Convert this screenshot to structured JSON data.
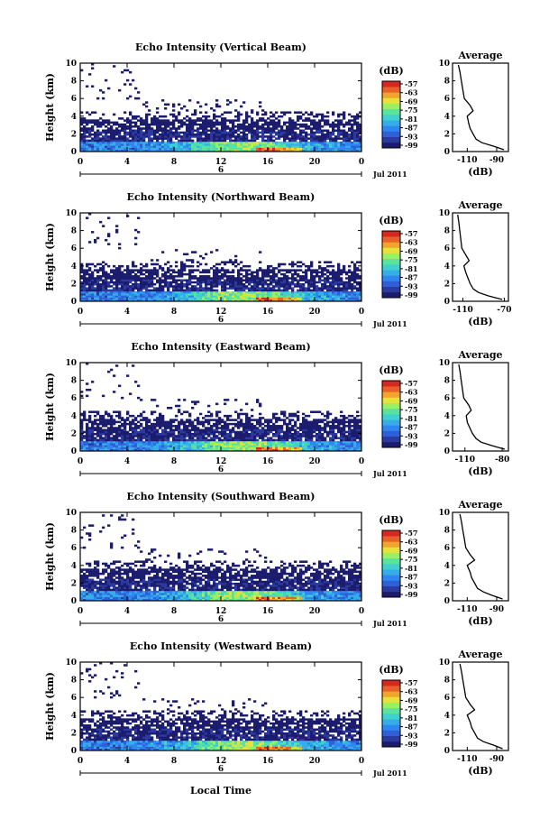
{
  "figure": {
    "xlabel": "Local Time",
    "date_label": "Jul 2011",
    "day_marker": "6"
  },
  "colorbar": {
    "unit": "(dB)",
    "ticks": [
      "-57",
      "-63",
      "-69",
      "-75",
      "-81",
      "-87",
      "-93",
      "-99"
    ],
    "colors": [
      "#1c1c6e",
      "#2a3a9e",
      "#2f5fd8",
      "#2e86f0",
      "#35aee8",
      "#3fd0d0",
      "#5ae39a",
      "#9bef62",
      "#e6e23a",
      "#f0a62d",
      "#e8602a",
      "#d42820"
    ]
  },
  "chart_data": [
    {
      "type": "heatmap",
      "title": "Echo Intensity (Vertical Beam)",
      "ylabel": "Height (km)",
      "x_ticks": [
        "0",
        "4",
        "8",
        "12",
        "16",
        "20",
        "0"
      ],
      "xlim": [
        0,
        24
      ],
      "ylim": [
        0,
        10
      ],
      "y_ticks": [
        "0",
        "2",
        "4",
        "6",
        "8",
        "10"
      ],
      "profile": {
        "title": "Average",
        "xlabel": "(dB)",
        "xticks": [
          "-110",
          "-90"
        ],
        "xlim": [
          -120,
          -82
        ],
        "height": [
          0.2,
          0.6,
          1.0,
          1.4,
          2.0,
          2.6,
          3.2,
          4.0,
          4.6,
          5.2,
          6.0,
          7.0,
          8.0,
          9.0,
          9.8
        ],
        "values": [
          -85,
          -92,
          -100,
          -104,
          -106,
          -108,
          -109,
          -110,
          -106,
          -108,
          -112,
          -113,
          -114,
          -115,
          -116
        ]
      }
    },
    {
      "type": "heatmap",
      "title": "Echo Intensity (Northward Beam)",
      "ylabel": "Height (km)",
      "x_ticks": [
        "0",
        "4",
        "8",
        "12",
        "16",
        "20",
        "0"
      ],
      "xlim": [
        0,
        24
      ],
      "ylim": [
        0,
        10
      ],
      "y_ticks": [
        "0",
        "2",
        "4",
        "6",
        "8",
        "10"
      ],
      "profile": {
        "title": "Average",
        "xlabel": "(dB)",
        "xticks": [
          "-110",
          "-70"
        ],
        "xlim": [
          -120,
          -66
        ],
        "height": [
          0.2,
          0.6,
          1.0,
          1.4,
          2.0,
          2.6,
          3.2,
          4.0,
          4.6,
          5.2,
          6.0,
          7.0,
          8.0,
          9.0,
          9.8
        ],
        "values": [
          -72,
          -85,
          -95,
          -100,
          -103,
          -105,
          -107,
          -109,
          -104,
          -107,
          -111,
          -112,
          -113,
          -114,
          -115
        ]
      }
    },
    {
      "type": "heatmap",
      "title": "Echo Intensity (Eastward Beam)",
      "ylabel": "Height (km)",
      "x_ticks": [
        "0",
        "4",
        "8",
        "12",
        "16",
        "20",
        "0"
      ],
      "xlim": [
        0,
        24
      ],
      "ylim": [
        0,
        10
      ],
      "y_ticks": [
        "0",
        "2",
        "4",
        "6",
        "8",
        "10"
      ],
      "profile": {
        "title": "Average",
        "xlabel": "(dB)",
        "xticks": [
          "-110",
          "-80"
        ],
        "xlim": [
          -120,
          -75
        ],
        "height": [
          0.2,
          0.6,
          1.0,
          1.4,
          2.0,
          2.6,
          3.2,
          4.0,
          4.6,
          5.2,
          6.0,
          7.0,
          8.0,
          9.0,
          9.8
        ],
        "values": [
          -78,
          -88,
          -97,
          -101,
          -104,
          -106,
          -108,
          -109,
          -105,
          -107,
          -111,
          -112,
          -113,
          -114,
          -115
        ]
      }
    },
    {
      "type": "heatmap",
      "title": "Echo Intensity (Southward Beam)",
      "ylabel": "Height (km)",
      "x_ticks": [
        "0",
        "4",
        "8",
        "12",
        "16",
        "20",
        "0"
      ],
      "xlim": [
        0,
        24
      ],
      "ylim": [
        0,
        10
      ],
      "y_ticks": [
        "0",
        "2",
        "4",
        "6",
        "8",
        "10"
      ],
      "profile": {
        "title": "Average",
        "xlabel": "(dB)",
        "xticks": [
          "-110",
          "-90"
        ],
        "xlim": [
          -120,
          -82
        ],
        "height": [
          0.2,
          0.6,
          1.0,
          1.4,
          2.0,
          2.6,
          3.2,
          4.0,
          4.6,
          5.2,
          6.0,
          7.0,
          8.0,
          9.0,
          9.8
        ],
        "values": [
          -86,
          -93,
          -99,
          -103,
          -105,
          -107,
          -108,
          -110,
          -105,
          -108,
          -111,
          -112,
          -113,
          -114,
          -115
        ]
      }
    },
    {
      "type": "heatmap",
      "title": "Echo Intensity (Westward Beam)",
      "ylabel": "Height (km)",
      "x_ticks": [
        "0",
        "4",
        "8",
        "12",
        "16",
        "20",
        "0"
      ],
      "xlim": [
        0,
        24
      ],
      "ylim": [
        0,
        10
      ],
      "y_ticks": [
        "0",
        "2",
        "4",
        "6",
        "8",
        "10"
      ],
      "profile": {
        "title": "Average",
        "xlabel": "(dB)",
        "xticks": [
          "-110",
          "-90"
        ],
        "xlim": [
          -120,
          -82
        ],
        "height": [
          0.2,
          0.6,
          1.0,
          1.4,
          2.0,
          2.6,
          3.2,
          4.0,
          4.6,
          5.2,
          6.0,
          7.0,
          8.0,
          9.0,
          9.8
        ],
        "values": [
          -86,
          -92,
          -99,
          -103,
          -105,
          -107,
          -108,
          -110,
          -105,
          -108,
          -111,
          -112,
          -113,
          -114,
          -115
        ]
      }
    }
  ]
}
